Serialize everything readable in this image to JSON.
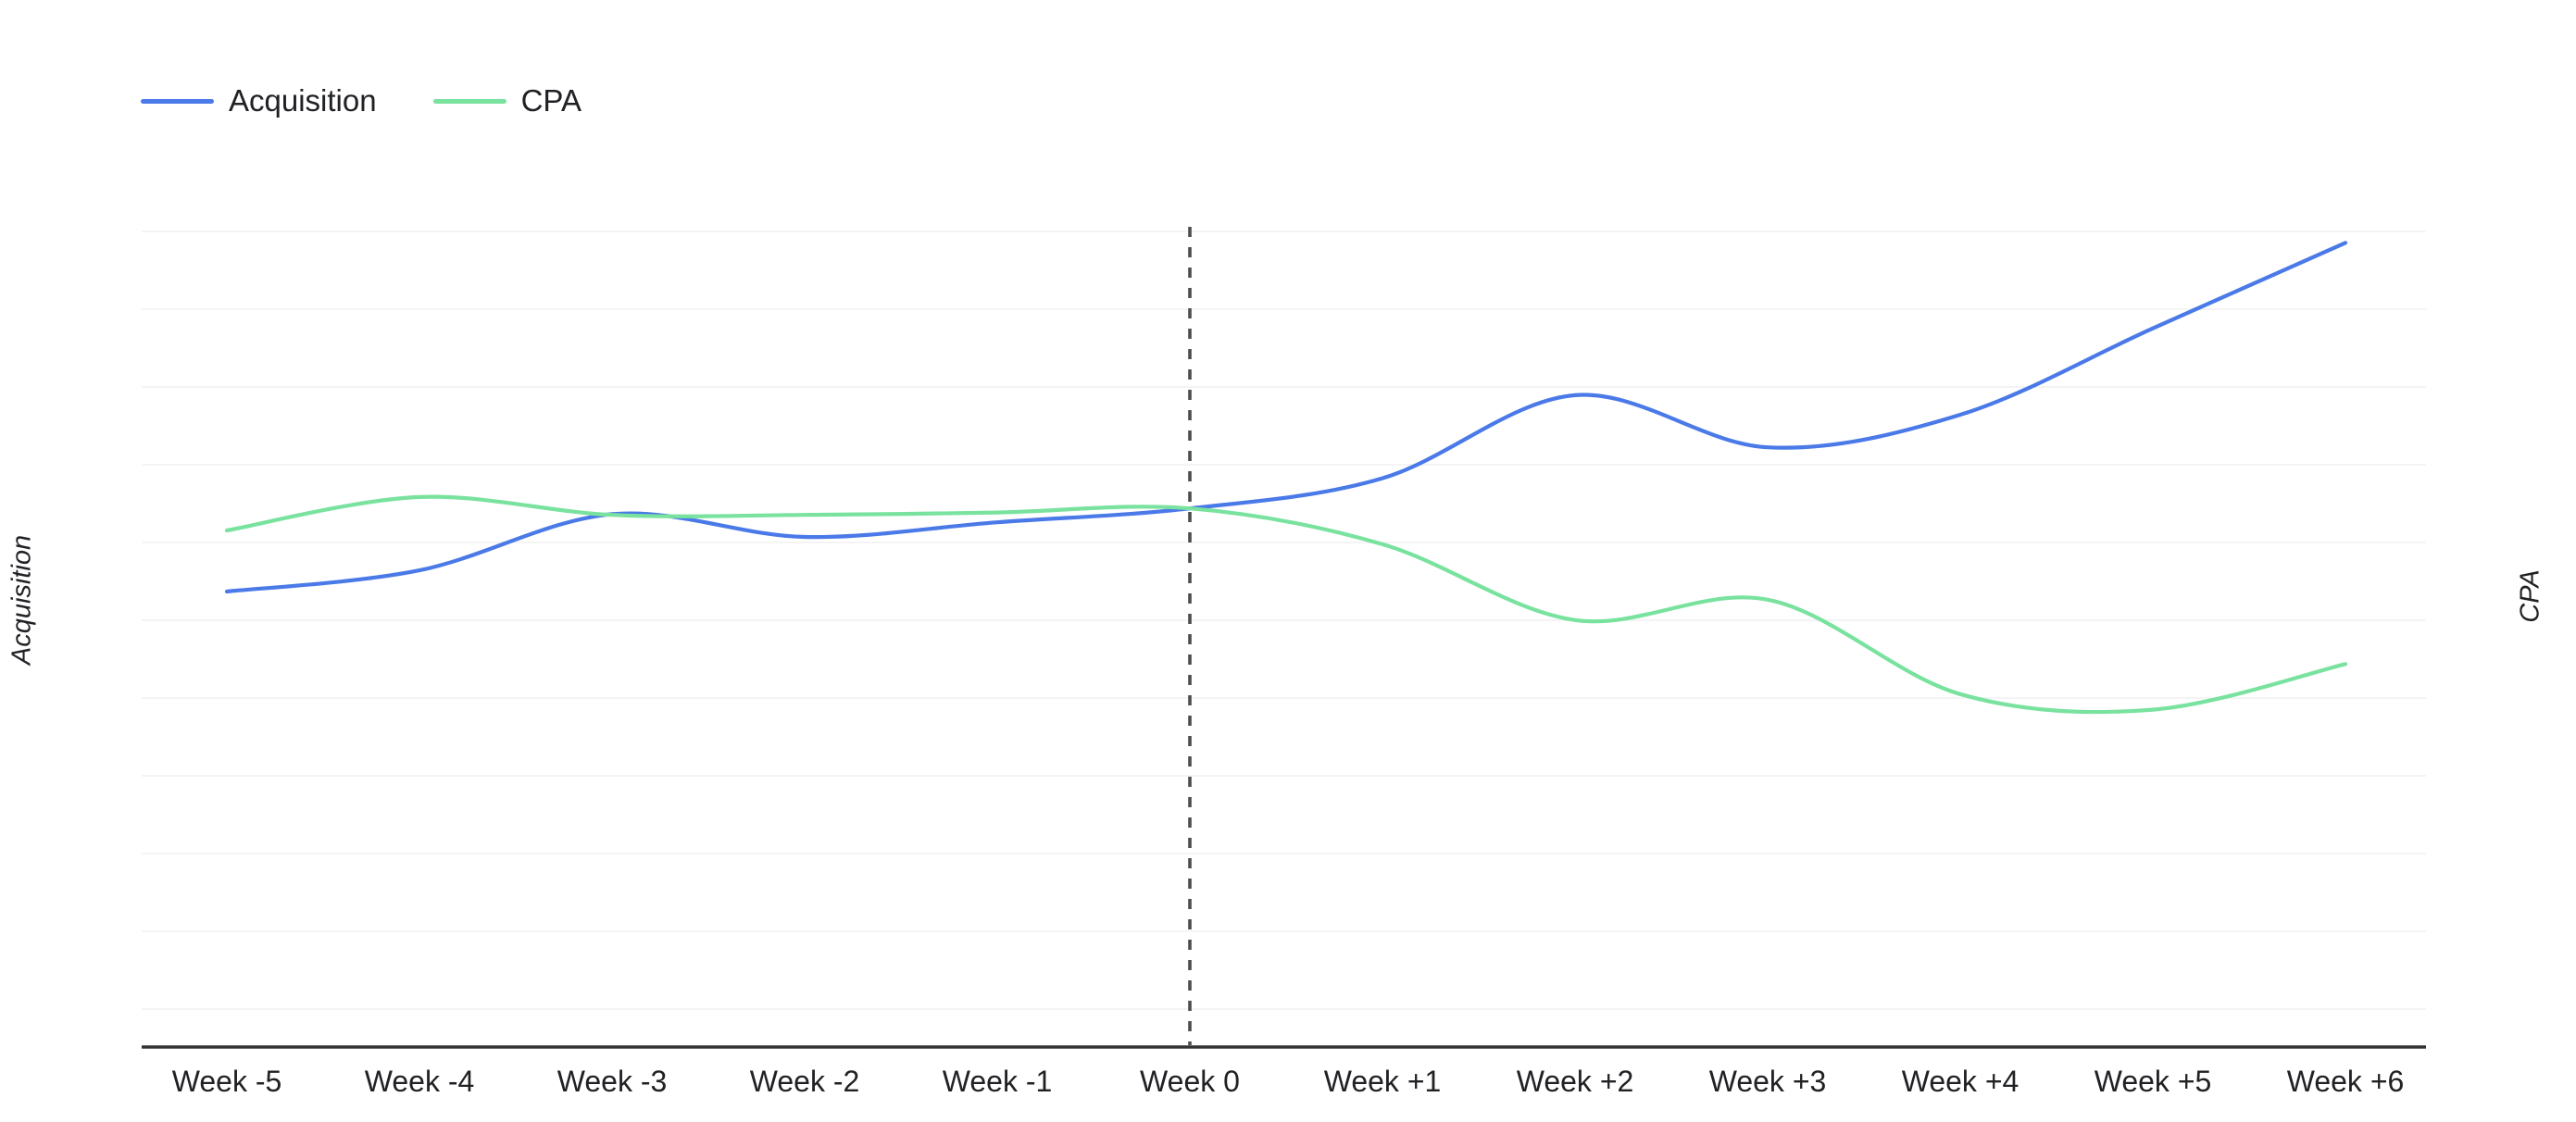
{
  "chart_data": {
    "type": "line",
    "categories": [
      "Week -5",
      "Week -4",
      "Week -3",
      "Week -2",
      "Week -1",
      "Week 0",
      "Week +1",
      "Week +2",
      "Week +3",
      "Week +4",
      "Week +5",
      "Week +6"
    ],
    "series": [
      {
        "name": "Acquisition",
        "axis": "left",
        "color": "#4a79e8",
        "values": [
          55.8,
          58.4,
          65.3,
          62.5,
          64.3,
          66.0,
          69.7,
          79.9,
          73.5,
          77.5,
          88.1,
          98.6
        ]
      },
      {
        "name": "CPA",
        "axis": "right",
        "color": "#79e29e",
        "values": [
          63.3,
          67.4,
          65.2,
          65.2,
          65.5,
          66.0,
          61.6,
          52.3,
          54.8,
          43.2,
          41.3,
          46.9
        ]
      }
    ],
    "y_axis": {
      "left_title": "Acquisition",
      "right_title": "CPA",
      "tick_labels": []
    },
    "x_axis": {
      "title": "",
      "tick_labels": [
        "Week -5",
        "Week -4",
        "Week -3",
        "Week -2",
        "Week -1",
        "Week 0",
        "Week +1",
        "Week +2",
        "Week +3",
        "Week +4",
        "Week +5",
        "Week +6"
      ]
    },
    "event_line": {
      "category": "Week 0",
      "style": "dashed",
      "color": "#4d4d4d"
    },
    "ylim": [
      0,
      110
    ],
    "grid": "faint horizontal gridlines, no y tick labels",
    "legend_position": "top-left"
  },
  "colors": {
    "acquisition_line": "#4a79e8",
    "cpa_line": "#79e29e",
    "axis_line": "#333333",
    "label_text": "#202124",
    "gridline": "#f4f4f4",
    "event_line": "#4d4d4d",
    "background": "#ffffff"
  }
}
